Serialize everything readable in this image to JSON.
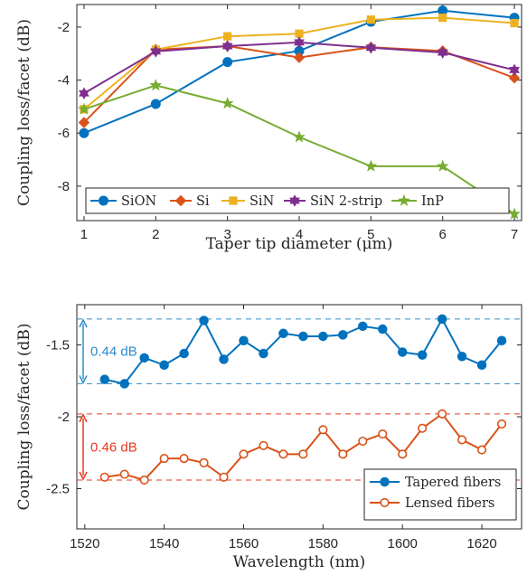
{
  "chart_data": [
    {
      "type": "line",
      "xlabel": "Taper tip diameter (μm)",
      "ylabel": "Coupling loss/facet (dB)",
      "x": [
        1,
        2,
        3,
        4,
        5,
        6,
        7
      ],
      "xlim": [
        0.9,
        7.1
      ],
      "ylim": [
        -9.3,
        -1.15
      ],
      "xticks": [
        1,
        2,
        3,
        4,
        5,
        6,
        7
      ],
      "yticks": [
        -8,
        -6,
        -4,
        -2
      ],
      "grid": false,
      "legend": {
        "placement": "bottom",
        "columns": 5
      },
      "series": [
        {
          "name": "SiON",
          "color": "#0072bd",
          "marker": "circle",
          "values": [
            -6.0,
            -4.9,
            -3.32,
            -2.9,
            -1.8,
            -1.38,
            -1.65
          ]
        },
        {
          "name": "Si",
          "color": "#d95319",
          "marker": "diamond",
          "values": [
            -5.6,
            -2.85,
            -2.72,
            -3.15,
            -2.76,
            -2.9,
            -3.92
          ]
        },
        {
          "name": "SiN",
          "color": "#edb120",
          "marker": "square",
          "values": [
            -5.1,
            -2.85,
            -2.35,
            -2.25,
            -1.72,
            -1.65,
            -1.85
          ]
        },
        {
          "name": "SiN 2-strip",
          "color": "#7e2f8e",
          "marker": "hexagram",
          "values": [
            -4.5,
            -2.92,
            -2.72,
            -2.58,
            -2.78,
            -2.96,
            -3.62
          ]
        },
        {
          "name": "InP",
          "color": "#77ac30",
          "marker": "pentagram",
          "values": [
            -5.1,
            -4.2,
            -4.88,
            -6.15,
            -7.25,
            -7.25,
            -9.05
          ]
        }
      ]
    },
    {
      "type": "line",
      "xlabel": "Wavelength (nm)",
      "ylabel": "Coupling loss/facet (dB)",
      "x": [
        1525,
        1530,
        1535,
        1540,
        1545,
        1550,
        1555,
        1560,
        1565,
        1570,
        1575,
        1580,
        1585,
        1590,
        1595,
        1600,
        1605,
        1610,
        1615,
        1620,
        1625
      ],
      "xlim": [
        1518,
        1630
      ],
      "ylim": [
        -2.78,
        -1.22
      ],
      "xticks": [
        1520,
        1540,
        1560,
        1580,
        1600,
        1620
      ],
      "yticks": [
        -2.5,
        -2,
        -1.5
      ],
      "grid": false,
      "legend": {
        "placement": "bottom-right",
        "columns": 1
      },
      "series": [
        {
          "name": "Tapered fibers",
          "color": "#0072bd",
          "marker": "filled-circle",
          "values": [
            -1.74,
            -1.77,
            -1.59,
            -1.64,
            -1.56,
            -1.33,
            -1.6,
            -1.47,
            -1.56,
            -1.42,
            -1.44,
            -1.44,
            -1.43,
            -1.37,
            -1.39,
            -1.55,
            -1.57,
            -1.32,
            -1.58,
            -1.64,
            -1.47
          ]
        },
        {
          "name": "Lensed fibers",
          "color": "#d95319",
          "marker": "open-circle",
          "values": [
            -2.42,
            -2.4,
            -2.44,
            -2.29,
            -2.29,
            -2.32,
            -2.42,
            -2.26,
            -2.2,
            -2.26,
            -2.26,
            -2.09,
            -2.26,
            -2.17,
            -2.12,
            -2.26,
            -2.08,
            -1.98,
            -2.16,
            -2.23,
            -2.05
          ]
        }
      ],
      "annotations": [
        {
          "text": "0.44 dB",
          "color": "#2b8ccd",
          "span": [
            -1.32,
            -1.77
          ]
        },
        {
          "text": "0.46 dB",
          "color": "#e8391e",
          "span": [
            -1.98,
            -2.44
          ]
        }
      ]
    }
  ]
}
